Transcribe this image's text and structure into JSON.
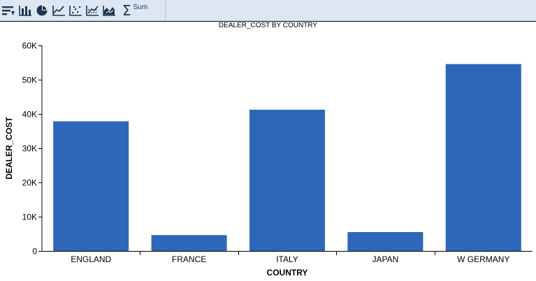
{
  "toolbar": {
    "icons": [
      {
        "name": "sort-icon"
      },
      {
        "name": "bar-chart-icon"
      },
      {
        "name": "pie-chart-icon"
      },
      {
        "name": "line-chart-icon"
      },
      {
        "name": "scatter-plot-icon"
      },
      {
        "name": "trend-line-icon"
      },
      {
        "name": "area-chart-icon"
      }
    ],
    "sum_symbol": "Σ",
    "sum_label": "Sum",
    "accent_color": "#dde7f3"
  },
  "chart_data": {
    "type": "bar",
    "title": "DEALER_COST BY COUNTRY",
    "xlabel": "COUNTRY",
    "ylabel": "DEALER_COST",
    "categories": [
      "ENGLAND",
      "FRANCE",
      "ITALY",
      "JAPAN",
      "W GERMANY"
    ],
    "values": [
      37850,
      4631,
      41235,
      5512,
      54563
    ],
    "ylim": [
      0,
      60000
    ],
    "yticks": [
      0,
      10000,
      20000,
      30000,
      40000,
      50000,
      60000
    ],
    "ytick_labels": [
      "0",
      "10K",
      "20K",
      "30K",
      "40K",
      "50K",
      "60K"
    ],
    "bar_color": "#2e67b9",
    "grid": false,
    "legend": "none"
  }
}
